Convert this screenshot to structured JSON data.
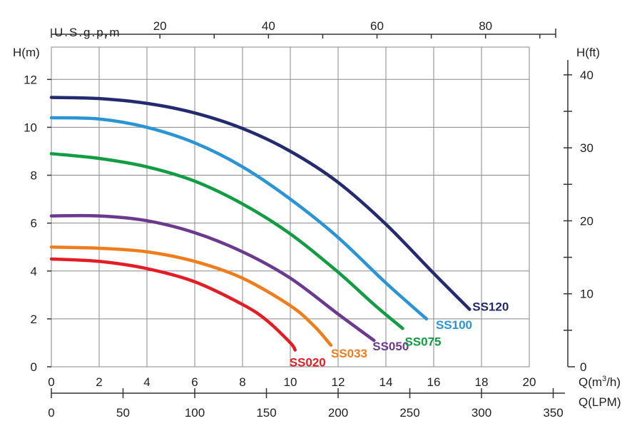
{
  "chart_data": {
    "type": "line",
    "x": {
      "label": "Q(m³/h)",
      "label_main": "Q(m",
      "label_sup": "3",
      "label_end": "/h)",
      "range": [
        0,
        20
      ],
      "ticks": [
        "0",
        "2",
        "4",
        "6",
        "8",
        "10",
        "12",
        "14",
        "16",
        "18",
        "20"
      ]
    },
    "y": {
      "label": "H(m)",
      "range": [
        0,
        12
      ],
      "ticks": [
        "0",
        "2",
        "4",
        "6",
        "8",
        "10",
        "12"
      ]
    },
    "y2": {
      "label": "H(ft)",
      "range_ft": [
        0,
        45
      ],
      "ticks": [
        "0",
        "10",
        "20",
        "30",
        "40"
      ]
    },
    "x_top": {
      "label": "U.S.g.p.m",
      "ticks": [
        "20",
        "40",
        "60",
        "80"
      ],
      "tick_values": [
        20,
        40,
        60,
        80
      ]
    },
    "x_bottom2": {
      "label": "Q(LPM)",
      "ticks": [
        "0",
        "50",
        "100",
        "150",
        "200",
        "250",
        "300",
        "350"
      ],
      "tick_values": [
        0,
        50,
        100,
        150,
        200,
        250,
        300,
        350
      ]
    },
    "grid": true,
    "series": [
      {
        "name": "SS020",
        "color": "#e31d24",
        "points": [
          [
            0,
            4.5
          ],
          [
            2,
            4.4
          ],
          [
            4,
            4.1
          ],
          [
            6,
            3.55
          ],
          [
            8,
            2.6
          ],
          [
            9,
            1.95
          ],
          [
            10,
            1.0
          ],
          [
            10.2,
            0.7
          ]
        ]
      },
      {
        "name": "SS033",
        "color": "#f07d1b",
        "points": [
          [
            0,
            5.0
          ],
          [
            2,
            4.95
          ],
          [
            4,
            4.8
          ],
          [
            6,
            4.4
          ],
          [
            8,
            3.7
          ],
          [
            10,
            2.55
          ],
          [
            11,
            1.7
          ],
          [
            11.7,
            0.9
          ]
        ]
      },
      {
        "name": "SS050",
        "color": "#6b3a8f",
        "points": [
          [
            0,
            6.3
          ],
          [
            2,
            6.3
          ],
          [
            4,
            6.1
          ],
          [
            6,
            5.6
          ],
          [
            8,
            4.8
          ],
          [
            10,
            3.7
          ],
          [
            12,
            2.2
          ],
          [
            13.5,
            1.1
          ]
        ]
      },
      {
        "name": "SS075",
        "color": "#129c43",
        "points": [
          [
            0,
            8.9
          ],
          [
            2,
            8.7
          ],
          [
            4,
            8.35
          ],
          [
            6,
            7.75
          ],
          [
            8,
            6.8
          ],
          [
            10,
            5.55
          ],
          [
            12,
            3.95
          ],
          [
            13.5,
            2.6
          ],
          [
            14.7,
            1.6
          ]
        ]
      },
      {
        "name": "SS100",
        "color": "#2a95d4",
        "points": [
          [
            0,
            10.4
          ],
          [
            2,
            10.35
          ],
          [
            4,
            10.0
          ],
          [
            6,
            9.35
          ],
          [
            8,
            8.35
          ],
          [
            10,
            7.0
          ],
          [
            12,
            5.4
          ],
          [
            14,
            3.5
          ],
          [
            15.7,
            2.0
          ]
        ]
      },
      {
        "name": "SS120",
        "color": "#242a70",
        "points": [
          [
            0,
            11.25
          ],
          [
            2,
            11.2
          ],
          [
            4,
            11.0
          ],
          [
            6,
            10.6
          ],
          [
            8,
            9.95
          ],
          [
            10,
            9.0
          ],
          [
            12,
            7.7
          ],
          [
            14,
            5.95
          ],
          [
            16,
            3.9
          ],
          [
            17.5,
            2.4
          ]
        ]
      }
    ]
  }
}
